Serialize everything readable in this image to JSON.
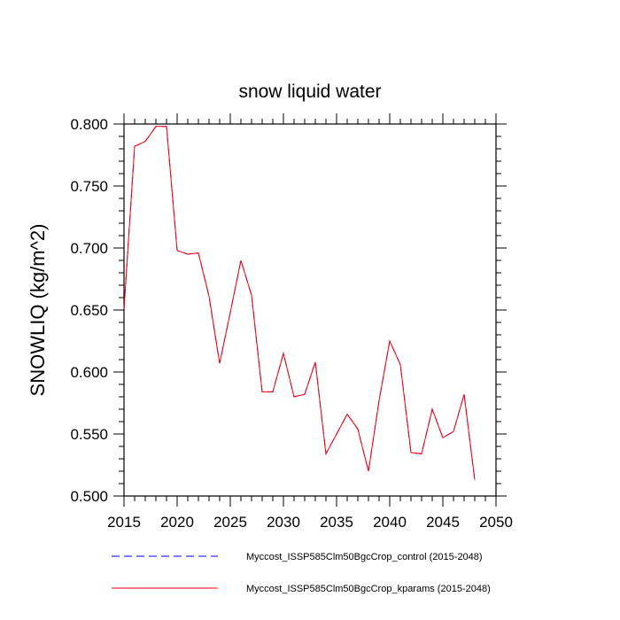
{
  "chart_data": {
    "type": "line",
    "title": "snow liquid water",
    "xlabel": "",
    "ylabel": "SNOWLIQ  (kg/m^2)",
    "xlim": [
      2015,
      2050
    ],
    "ylim": [
      0.5,
      0.8
    ],
    "x_major_ticks": [
      2015,
      2020,
      2025,
      2030,
      2035,
      2040,
      2045,
      2050
    ],
    "y_major_ticks": [
      0.5,
      0.55,
      0.6,
      0.65,
      0.7,
      0.75,
      0.8
    ],
    "x_tick_labels": [
      "2015",
      "2020",
      "2025",
      "2030",
      "2035",
      "2040",
      "2045",
      "2050"
    ],
    "y_tick_labels": [
      "0.500",
      "0.550",
      "0.600",
      "0.650",
      "0.700",
      "0.750",
      "0.800"
    ],
    "x": [
      2015,
      2016,
      2017,
      2018,
      2019,
      2020,
      2021,
      2022,
      2023,
      2024,
      2025,
      2026,
      2027,
      2028,
      2029,
      2030,
      2031,
      2032,
      2033,
      2034,
      2035,
      2036,
      2037,
      2038,
      2039,
      2040,
      2041,
      2042,
      2043,
      2044,
      2045,
      2046,
      2047,
      2048
    ],
    "series": [
      {
        "name": "Myccost_ISSP585Clm50BgcCrop_control (2015-2048)",
        "color": "#0000ff",
        "dash": "dashed",
        "values": [
          0.651,
          0.782,
          0.786,
          0.798,
          0.798,
          0.698,
          0.695,
          0.696,
          0.661,
          0.607,
          0.648,
          0.69,
          0.662,
          0.584,
          0.584,
          0.615,
          0.58,
          0.582,
          0.608,
          0.534,
          0.55,
          0.566,
          0.554,
          0.52,
          0.577,
          0.625,
          0.606,
          0.535,
          0.534,
          0.57,
          0.547,
          0.552,
          0.582,
          0.513
        ]
      },
      {
        "name": "Myccost_ISSP585Clm50BgcCrop_kparams (2015-2048)",
        "color": "#ff0000",
        "dash": "solid",
        "values": [
          0.651,
          0.782,
          0.786,
          0.798,
          0.798,
          0.698,
          0.695,
          0.696,
          0.661,
          0.607,
          0.648,
          0.69,
          0.662,
          0.584,
          0.584,
          0.615,
          0.58,
          0.582,
          0.608,
          0.534,
          0.55,
          0.566,
          0.554,
          0.52,
          0.577,
          0.625,
          0.606,
          0.535,
          0.534,
          0.57,
          0.547,
          0.552,
          0.582,
          0.513
        ]
      }
    ]
  }
}
